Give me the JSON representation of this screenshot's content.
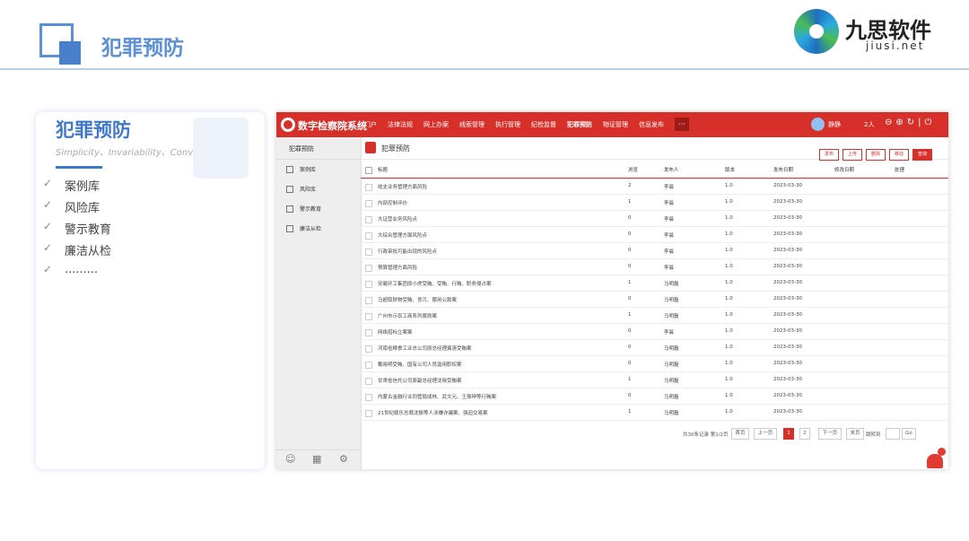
{
  "header": {
    "title": "犯罪预防"
  },
  "logo": {
    "name": "九思软件",
    "domain": "jiusi.net"
  },
  "card": {
    "title": "犯罪预防",
    "subtitle": "Simplicity、Invariability、Convertibility",
    "items": [
      "案例库",
      "风险库",
      "警示教育",
      "廉洁从检",
      "........."
    ]
  },
  "app": {
    "brand": "数字检察院系统",
    "nav": [
      "门户",
      "法律法规",
      "网上办案",
      "线索管理",
      "执行管理",
      "纪检监督",
      "犯罪预防",
      "物证管理",
      "信息发布"
    ],
    "more": "···",
    "user": "静静",
    "online": "2人",
    "sidebar": {
      "title": "犯罪预防",
      "items": [
        "案例库",
        "风险库",
        "警示教育",
        "廉洁从检"
      ]
    },
    "page_title": "犯罪预防",
    "buttons": [
      "发布",
      "上传",
      "删除",
      "移动",
      "查询"
    ],
    "table": {
      "columns": [
        "标题",
        "浏览",
        "发布人",
        "版本",
        "发布日期",
        "修改日期",
        "处理"
      ],
      "rows": [
        [
          "收支业务管理方面风险",
          2,
          "李晨",
          "1.0",
          "2023-03-30"
        ],
        [
          "内部控制评价",
          1,
          "李晨",
          "1.0",
          "2023-03-30"
        ],
        [
          "大证营业务风险点",
          0,
          "李晨",
          "1.0",
          "2023-03-30"
        ],
        [
          "大综合管理方面风险点",
          0,
          "李晨",
          "1.0",
          "2023-03-30"
        ],
        [
          "行政审批可能出现的风险点",
          0,
          "李晨",
          "1.0",
          "2023-03-30"
        ],
        [
          "预算管理方面风险",
          0,
          "李晨",
          "1.0",
          "2023-03-30"
        ],
        [
          "安徽环工集团原小虎受贿、受贿、行贿、职务侵占案",
          1,
          "马明磊",
          "1.0",
          "2023-03-30"
        ],
        [
          "马超取财物受贿、贪污、挪用公款案",
          0,
          "马明磊",
          "1.0",
          "2023-03-30"
        ],
        [
          "广州市示农工商系列腐败案",
          1,
          "马明磊",
          "1.0",
          "2023-03-30"
        ],
        [
          "网络招标立案案",
          0,
          "李晨",
          "1.0",
          "2023-03-30"
        ],
        [
          "河南省粮食工业总公司原总经理冀清受贿案",
          0,
          "马明磊",
          "1.0",
          "2023-03-30"
        ],
        [
          "戴晓明受贿、国有公司人员滥用职权案",
          0,
          "马明磊",
          "1.0",
          "2023-03-30"
        ],
        [
          "甘肃省信托公司原副总经理沈晓受贿案",
          1,
          "马明磊",
          "1.0",
          "2023-03-30"
        ],
        [
          "内蒙古金融行业同管局成林、武文元、王振坤等行贿案",
          0,
          "马明磊",
          "1.0",
          "2023-03-30"
        ],
        [
          "21世纪娱乐总裁沈振等人涉嫌诈骗案、强迫交易案",
          1,
          "马明磊",
          "1.0",
          "2023-03-30"
        ]
      ]
    },
    "pagination": {
      "summary": "共30条记录 第1/2页",
      "first": "首页",
      "prev": "上一页",
      "pages": [
        "1",
        "2"
      ],
      "next": "下一页",
      "last": "末页",
      "jump": "跳转到",
      "go": "Go"
    },
    "badge": "3"
  }
}
